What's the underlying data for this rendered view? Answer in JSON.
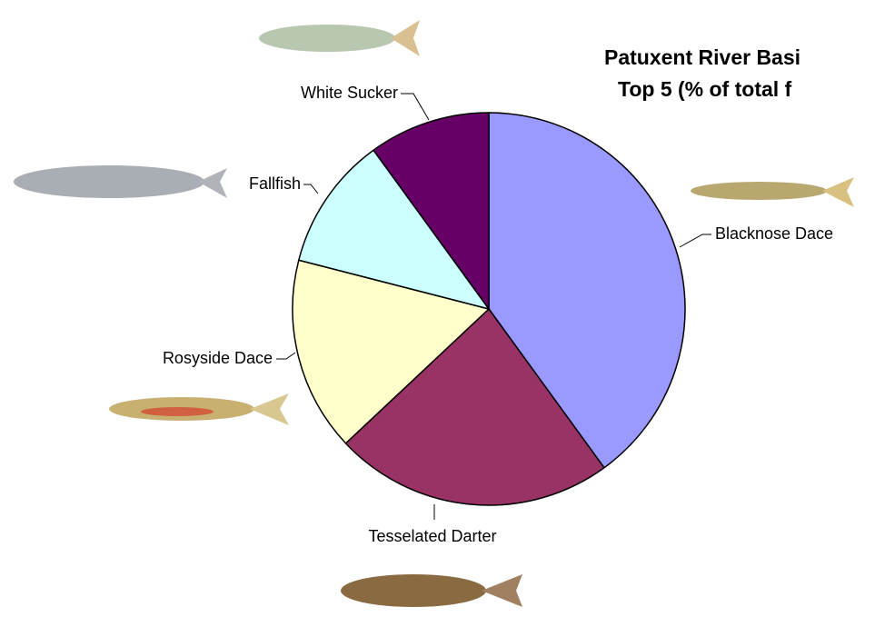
{
  "chart_data": {
    "type": "pie",
    "title": [
      "Patuxent River Basi",
      "Top 5 (% of total f"
    ],
    "categories": [
      "Blacknose Dace",
      "Tesselated Darter",
      "Rosyside Dace",
      "Fallfish",
      "White Sucker"
    ],
    "values": [
      40,
      23,
      16,
      11,
      10
    ],
    "colors": [
      "#9999ff",
      "#993366",
      "#ffffcc",
      "#ccffff",
      "#660066"
    ]
  }
}
